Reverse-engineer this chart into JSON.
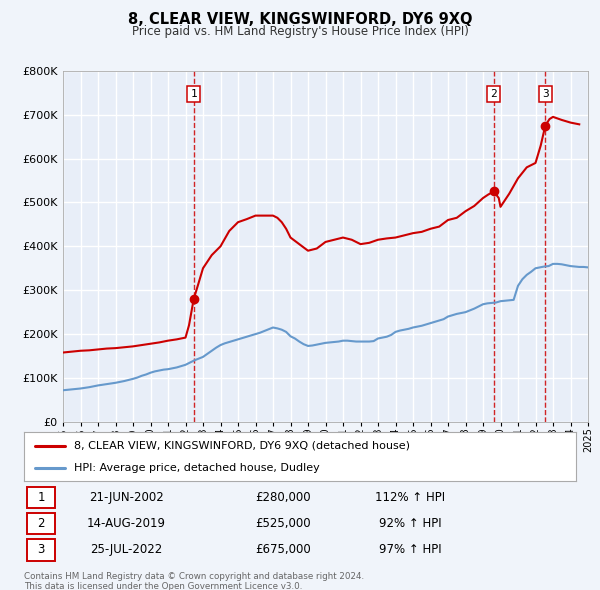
{
  "title": "8, CLEAR VIEW, KINGSWINFORD, DY6 9XQ",
  "subtitle": "Price paid vs. HM Land Registry's House Price Index (HPI)",
  "background_color": "#f0f4fa",
  "plot_bg_color": "#e8eef8",
  "grid_color": "#ffffff",
  "xmin": 1995,
  "xmax": 2025,
  "ymin": 0,
  "ymax": 800000,
  "yticks": [
    0,
    100000,
    200000,
    300000,
    400000,
    500000,
    600000,
    700000,
    800000
  ],
  "transactions": [
    {
      "label": "1",
      "date": "21-JUN-2002",
      "year": 2002.47,
      "price": 280000,
      "hpi_pct": "112%",
      "arrow": "↑"
    },
    {
      "label": "2",
      "date": "14-AUG-2019",
      "year": 2019.62,
      "price": 525000,
      "hpi_pct": "92%",
      "arrow": "↑"
    },
    {
      "label": "3",
      "date": "25-JUL-2022",
      "year": 2022.56,
      "price": 675000,
      "hpi_pct": "97%",
      "arrow": "↑"
    }
  ],
  "legend_line1": "8, CLEAR VIEW, KINGSWINFORD, DY6 9XQ (detached house)",
  "legend_line2": "HPI: Average price, detached house, Dudley",
  "footer1": "Contains HM Land Registry data © Crown copyright and database right 2024.",
  "footer2": "This data is licensed under the Open Government Licence v3.0.",
  "red_line_color": "#cc0000",
  "blue_line_color": "#6699cc",
  "vline_color": "#cc0000",
  "hpi_line": {
    "years": [
      1995.0,
      1995.25,
      1995.5,
      1995.75,
      1996.0,
      1996.25,
      1996.5,
      1996.75,
      1997.0,
      1997.25,
      1997.5,
      1997.75,
      1998.0,
      1998.25,
      1998.5,
      1998.75,
      1999.0,
      1999.25,
      1999.5,
      1999.75,
      2000.0,
      2000.25,
      2000.5,
      2000.75,
      2001.0,
      2001.25,
      2001.5,
      2001.75,
      2002.0,
      2002.25,
      2002.5,
      2002.75,
      2003.0,
      2003.25,
      2003.5,
      2003.75,
      2004.0,
      2004.25,
      2004.5,
      2004.75,
      2005.0,
      2005.25,
      2005.5,
      2005.75,
      2006.0,
      2006.25,
      2006.5,
      2006.75,
      2007.0,
      2007.25,
      2007.5,
      2007.75,
      2008.0,
      2008.25,
      2008.5,
      2008.75,
      2009.0,
      2009.25,
      2009.5,
      2009.75,
      2010.0,
      2010.25,
      2010.5,
      2010.75,
      2011.0,
      2011.25,
      2011.5,
      2011.75,
      2012.0,
      2012.25,
      2012.5,
      2012.75,
      2013.0,
      2013.25,
      2013.5,
      2013.75,
      2014.0,
      2014.25,
      2014.5,
      2014.75,
      2015.0,
      2015.25,
      2015.5,
      2015.75,
      2016.0,
      2016.25,
      2016.5,
      2016.75,
      2017.0,
      2017.25,
      2017.5,
      2017.75,
      2018.0,
      2018.25,
      2018.5,
      2018.75,
      2019.0,
      2019.25,
      2019.5,
      2019.75,
      2020.0,
      2020.25,
      2020.5,
      2020.75,
      2021.0,
      2021.25,
      2021.5,
      2021.75,
      2022.0,
      2022.25,
      2022.5,
      2022.75,
      2023.0,
      2023.25,
      2023.5,
      2023.75,
      2024.0,
      2024.25,
      2024.5,
      2024.75,
      2025.0
    ],
    "values": [
      72000,
      73000,
      74000,
      75000,
      76000,
      77500,
      79000,
      81000,
      83000,
      84500,
      86000,
      87500,
      89000,
      91000,
      93000,
      95500,
      98000,
      101000,
      105000,
      108000,
      112000,
      115000,
      117000,
      119000,
      120000,
      122000,
      124000,
      127000,
      130000,
      135000,
      140000,
      144000,
      148000,
      155000,
      162000,
      169000,
      175000,
      179000,
      182000,
      185000,
      188000,
      191000,
      194000,
      197000,
      200000,
      203000,
      207000,
      211000,
      215000,
      213000,
      210000,
      205000,
      195000,
      190000,
      183000,
      177000,
      173000,
      174000,
      176000,
      178000,
      180000,
      181000,
      182000,
      183000,
      185000,
      185000,
      184000,
      183000,
      183000,
      183000,
      183000,
      184000,
      190000,
      192000,
      194000,
      198000,
      205000,
      208000,
      210000,
      212000,
      215000,
      217000,
      219000,
      222000,
      225000,
      228000,
      231000,
      234000,
      240000,
      243000,
      246000,
      248000,
      250000,
      254000,
      258000,
      263000,
      268000,
      270000,
      271000,
      272000,
      275000,
      276000,
      277000,
      278000,
      310000,
      325000,
      335000,
      342000,
      350000,
      352000,
      354000,
      355000,
      360000,
      360000,
      359000,
      357000,
      355000,
      354000,
      353000,
      353000,
      352000
    ]
  },
  "price_line": {
    "years": [
      1995.0,
      1995.5,
      1996.0,
      1996.5,
      1997.0,
      1997.5,
      1998.0,
      1998.5,
      1999.0,
      1999.5,
      2000.0,
      2000.5,
      2001.0,
      2001.5,
      2002.0,
      2002.2,
      2002.47,
      2002.7,
      2003.0,
      2003.5,
      2004.0,
      2004.5,
      2005.0,
      2005.5,
      2006.0,
      2006.5,
      2007.0,
      2007.25,
      2007.5,
      2007.75,
      2008.0,
      2008.5,
      2009.0,
      2009.5,
      2010.0,
      2010.5,
      2011.0,
      2011.5,
      2012.0,
      2012.5,
      2013.0,
      2013.5,
      2014.0,
      2014.5,
      2015.0,
      2015.5,
      2016.0,
      2016.5,
      2017.0,
      2017.5,
      2018.0,
      2018.5,
      2019.0,
      2019.3,
      2019.62,
      2019.9,
      2020.0,
      2020.5,
      2021.0,
      2021.5,
      2022.0,
      2022.3,
      2022.56,
      2022.8,
      2023.0,
      2023.5,
      2024.0,
      2024.5
    ],
    "values": [
      158000,
      160000,
      162000,
      163000,
      165000,
      167000,
      168000,
      170000,
      172000,
      175000,
      178000,
      181000,
      185000,
      188000,
      192000,
      220000,
      280000,
      310000,
      350000,
      380000,
      400000,
      435000,
      455000,
      462000,
      470000,
      470000,
      470000,
      465000,
      455000,
      440000,
      420000,
      405000,
      390000,
      395000,
      410000,
      415000,
      420000,
      415000,
      405000,
      408000,
      415000,
      418000,
      420000,
      425000,
      430000,
      433000,
      440000,
      445000,
      460000,
      465000,
      480000,
      492000,
      510000,
      518000,
      525000,
      510000,
      490000,
      520000,
      555000,
      580000,
      590000,
      630000,
      675000,
      690000,
      695000,
      688000,
      682000,
      678000
    ]
  }
}
